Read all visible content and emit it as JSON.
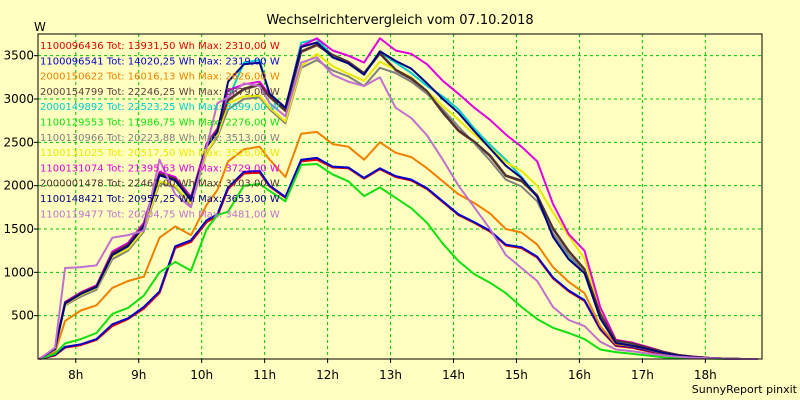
{
  "chart_data": {
    "type": "line",
    "title": "Wechselrichtervergleich vom 07.10.2018",
    "ylabel": "W",
    "footer": "SunnyReport pinxit",
    "ylim": [
      0,
      3750
    ],
    "yticks": [
      500,
      1000,
      1500,
      2000,
      2500,
      3000,
      3500
    ],
    "xlim": [
      7.4,
      18.9
    ],
    "xticks": [
      {
        "label": "8h",
        "value": 8
      },
      {
        "label": "9h",
        "value": 9
      },
      {
        "label": "10h",
        "value": 10
      },
      {
        "label": "11h",
        "value": 11
      },
      {
        "label": "12h",
        "value": 12
      },
      {
        "label": "13h",
        "value": 13
      },
      {
        "label": "14h",
        "value": 14
      },
      {
        "label": "15h",
        "value": 15
      },
      {
        "label": "16h",
        "value": 16
      },
      {
        "label": "17h",
        "value": 17
      },
      {
        "label": "18h",
        "value": 18
      }
    ],
    "grid": true,
    "legend_position": "top-left",
    "x": [
      7.42,
      7.67,
      7.83,
      8.08,
      8.33,
      8.58,
      8.83,
      9.08,
      9.33,
      9.58,
      9.83,
      10.08,
      10.25,
      10.42,
      10.67,
      10.92,
      11.08,
      11.33,
      11.58,
      11.83,
      12.08,
      12.33,
      12.58,
      12.83,
      13.08,
      13.33,
      13.58,
      13.83,
      14.08,
      14.33,
      14.58,
      14.83,
      15.08,
      15.33,
      15.58,
      15.83,
      16.08,
      16.33,
      16.58,
      16.83,
      17.08,
      17.33,
      17.58,
      17.83,
      18.08,
      18.33,
      18.58,
      18.83
    ],
    "series": [
      {
        "name": "1100096436 Tot: 13931,50 Wh Max: 2310,00 W",
        "color": "#e00000",
        "values": [
          0,
          40,
          130,
          160,
          220,
          380,
          460,
          580,
          760,
          1280,
          1350,
          1580,
          1650,
          1960,
          2140,
          2150,
          1990,
          1860,
          2280,
          2300,
          2210,
          2200,
          2080,
          2190,
          2100,
          2060,
          1960,
          1810,
          1660,
          1570,
          1470,
          1310,
          1280,
          1170,
          930,
          780,
          670,
          340,
          150,
          130,
          90,
          50,
          30,
          20,
          10,
          5,
          0,
          0
        ]
      },
      {
        "name": "1100096541 Tot: 14020,25 Wh Max: 2319,00 W",
        "color": "#0000cc",
        "values": [
          0,
          50,
          140,
          170,
          230,
          400,
          470,
          600,
          780,
          1300,
          1370,
          1600,
          1670,
          1980,
          2160,
          2170,
          2000,
          1870,
          2300,
          2320,
          2220,
          2210,
          2090,
          2200,
          2110,
          2070,
          1970,
          1820,
          1670,
          1580,
          1480,
          1320,
          1290,
          1180,
          940,
          790,
          680,
          350,
          160,
          140,
          100,
          60,
          35,
          20,
          10,
          5,
          0,
          0
        ]
      },
      {
        "name": "2000150622 Tot: 16016,13 Wh Max: 2626,00 W",
        "color": "#f08000",
        "values": [
          0,
          80,
          440,
          560,
          620,
          820,
          900,
          950,
          1400,
          1530,
          1430,
          1780,
          1950,
          2280,
          2420,
          2450,
          2300,
          2100,
          2600,
          2620,
          2480,
          2450,
          2300,
          2500,
          2380,
          2330,
          2200,
          2050,
          1900,
          1800,
          1680,
          1500,
          1460,
          1320,
          1060,
          890,
          760,
          380,
          170,
          150,
          110,
          65,
          40,
          25,
          12,
          5,
          0,
          0
        ]
      },
      {
        "name": "2000154799 Tot: 22246,25 Wh Max: 3679,00 W",
        "color": "#604040",
        "values": [
          0,
          120,
          650,
          760,
          840,
          1220,
          1320,
          1550,
          2140,
          2080,
          1850,
          2470,
          2640,
          2980,
          3110,
          3160,
          3020,
          2860,
          3540,
          3620,
          3500,
          3420,
          3290,
          3520,
          3330,
          3230,
          3080,
          2840,
          2630,
          2500,
          2340,
          2110,
          2050,
          1880,
          1500,
          1240,
          1030,
          520,
          210,
          180,
          130,
          80,
          45,
          25,
          12,
          5,
          0,
          0
        ]
      },
      {
        "name": "2000149892 Tot: 22523,25 Wh Max: 3699,00 W",
        "color": "#00cccc",
        "values": [
          0,
          120,
          640,
          750,
          830,
          1200,
          1310,
          1530,
          2130,
          2060,
          1840,
          2460,
          2630,
          3000,
          3420,
          3450,
          3050,
          2880,
          3650,
          3690,
          3500,
          3420,
          3300,
          3540,
          3420,
          3300,
          3150,
          3030,
          2880,
          2660,
          2470,
          2300,
          2100,
          1880,
          1420,
          1160,
          1000,
          480,
          190,
          160,
          120,
          75,
          40,
          20,
          10,
          5,
          0,
          0
        ]
      },
      {
        "name": "1100129553 Tot: 11986,75 Wh Max: 2276,00 W",
        "color": "#10e010",
        "values": [
          0,
          60,
          180,
          230,
          300,
          520,
          590,
          730,
          1000,
          1120,
          1020,
          1500,
          1660,
          1700,
          2000,
          2020,
          1940,
          1820,
          2240,
          2250,
          2130,
          2050,
          1880,
          1980,
          1860,
          1740,
          1570,
          1330,
          1130,
          980,
          880,
          760,
          600,
          460,
          360,
          300,
          230,
          110,
          80,
          60,
          40,
          20,
          12,
          8,
          5,
          0,
          0,
          0
        ]
      },
      {
        "name": "1100130966 Tot: 20223,88 Wh Max: 3513,00 W",
        "color": "#808080",
        "values": [
          0,
          110,
          620,
          720,
          800,
          1150,
          1250,
          1470,
          2030,
          1980,
          1770,
          2380,
          2560,
          2880,
          3000,
          3020,
          2880,
          2720,
          3360,
          3450,
          3330,
          3260,
          3150,
          3360,
          3300,
          3200,
          3060,
          2880,
          2680,
          2490,
          2290,
          2070,
          1990,
          1820,
          1450,
          1200,
          1000,
          500,
          200,
          170,
          125,
          75,
          40,
          22,
          10,
          5,
          0,
          0
        ]
      },
      {
        "name": "1100131025 Tot: 20517,50 Wh Max: 3526,00 W",
        "color": "#e8e800",
        "values": [
          0,
          110,
          630,
          740,
          820,
          1180,
          1270,
          1490,
          2050,
          2000,
          1790,
          2390,
          2580,
          2950,
          3030,
          3040,
          2900,
          2740,
          3380,
          3520,
          3380,
          3290,
          3210,
          3430,
          3340,
          3250,
          3090,
          2920,
          2760,
          2590,
          2440,
          2270,
          2170,
          2000,
          1690,
          1420,
          1160,
          560,
          220,
          190,
          140,
          85,
          45,
          25,
          12,
          5,
          0,
          0
        ]
      },
      {
        "name": "1100131074 Tot: 21395,63 Wh Max: 3729,00 W",
        "color": "#e000e0",
        "values": [
          0,
          120,
          660,
          770,
          850,
          1240,
          1340,
          1570,
          2160,
          2100,
          1870,
          2490,
          2660,
          3100,
          3170,
          3200,
          3050,
          2900,
          3610,
          3700,
          3560,
          3500,
          3420,
          3700,
          3560,
          3520,
          3400,
          3210,
          3060,
          2900,
          2760,
          2590,
          2450,
          2280,
          1790,
          1440,
          1250,
          600,
          220,
          190,
          140,
          85,
          45,
          25,
          12,
          5,
          0,
          0
        ]
      },
      {
        "name": "2000001478 Tot: 22461,00 Wh Max: 3703,00 W",
        "color": "#503030",
        "values": [
          0,
          120,
          650,
          760,
          840,
          1220,
          1320,
          1550,
          2140,
          2080,
          1850,
          2470,
          2640,
          2990,
          3120,
          3170,
          3030,
          2870,
          3550,
          3630,
          3510,
          3430,
          3300,
          3530,
          3340,
          3240,
          3090,
          2850,
          2640,
          2510,
          2350,
          2120,
          2060,
          1890,
          1510,
          1250,
          1040,
          525,
          212,
          182,
          132,
          82,
          46,
          26,
          12,
          5,
          0,
          0
        ]
      },
      {
        "name": "1100148421 Tot: 20957,25 Wh Max: 3653,00 W",
        "color": "#000080",
        "values": [
          0,
          115,
          640,
          750,
          830,
          1200,
          1300,
          1530,
          2120,
          2060,
          1830,
          2450,
          2620,
          3200,
          3400,
          3420,
          3060,
          2900,
          3600,
          3653,
          3480,
          3410,
          3280,
          3550,
          3440,
          3350,
          3180,
          3000,
          2840,
          2630,
          2430,
          2230,
          2090,
          1870,
          1410,
          1150,
          990,
          470,
          185,
          155,
          115,
          70,
          38,
          20,
          10,
          5,
          0,
          0
        ]
      },
      {
        "name": "1100119477 Tot: 20204,75 Wh Max: 3481,00 W",
        "color": "#c070d0",
        "values": [
          0,
          130,
          1050,
          1060,
          1080,
          1400,
          1430,
          1480,
          2300,
          1900,
          1750,
          2450,
          2950,
          3020,
          3180,
          3150,
          2950,
          2800,
          3420,
          3481,
          3280,
          3200,
          3150,
          3250,
          2900,
          2780,
          2580,
          2300,
          2000,
          1750,
          1500,
          1200,
          1050,
          900,
          600,
          450,
          380,
          200,
          110,
          90,
          65,
          40,
          25,
          15,
          8,
          3,
          0,
          0
        ]
      }
    ]
  }
}
